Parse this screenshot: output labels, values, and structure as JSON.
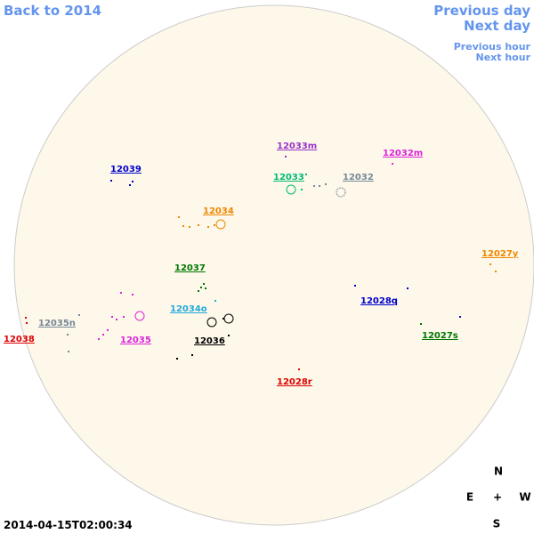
{
  "nav": {
    "back": "Back to 2014",
    "previous_day": "Previous day",
    "next_day": "Next day",
    "previous_hour": "Previous hour",
    "next_hour": "Next hour"
  },
  "regions": [
    {
      "label": "12033m",
      "color": "#9933cc"
    },
    {
      "label": "12032m",
      "color": "#dd22dd"
    },
    {
      "label": "12039",
      "color": "#0000cc"
    },
    {
      "label": "12033",
      "color": "#00bb77"
    },
    {
      "label": "12032",
      "color": "#778899"
    },
    {
      "label": "12034",
      "color": "#ee8800"
    },
    {
      "label": "12027y",
      "color": "#ee8800"
    },
    {
      "label": "12037",
      "color": "#007700"
    },
    {
      "label": "12028q",
      "color": "#0000cc"
    },
    {
      "label": "12034o",
      "color": "#22aadd"
    },
    {
      "label": "12035n",
      "color": "#778899"
    },
    {
      "label": "12027s",
      "color": "#007700"
    },
    {
      "label": "12038",
      "color": "#dd0000"
    },
    {
      "label": "12035",
      "color": "#dd22dd"
    },
    {
      "label": "12036",
      "color": "#000000"
    },
    {
      "label": "12028r",
      "color": "#dd0000"
    }
  ],
  "compass": {
    "north": "N",
    "east": "E",
    "center": "+",
    "west": "W",
    "south": "S"
  },
  "timestamp": "2014-04-15T02:00:34"
}
